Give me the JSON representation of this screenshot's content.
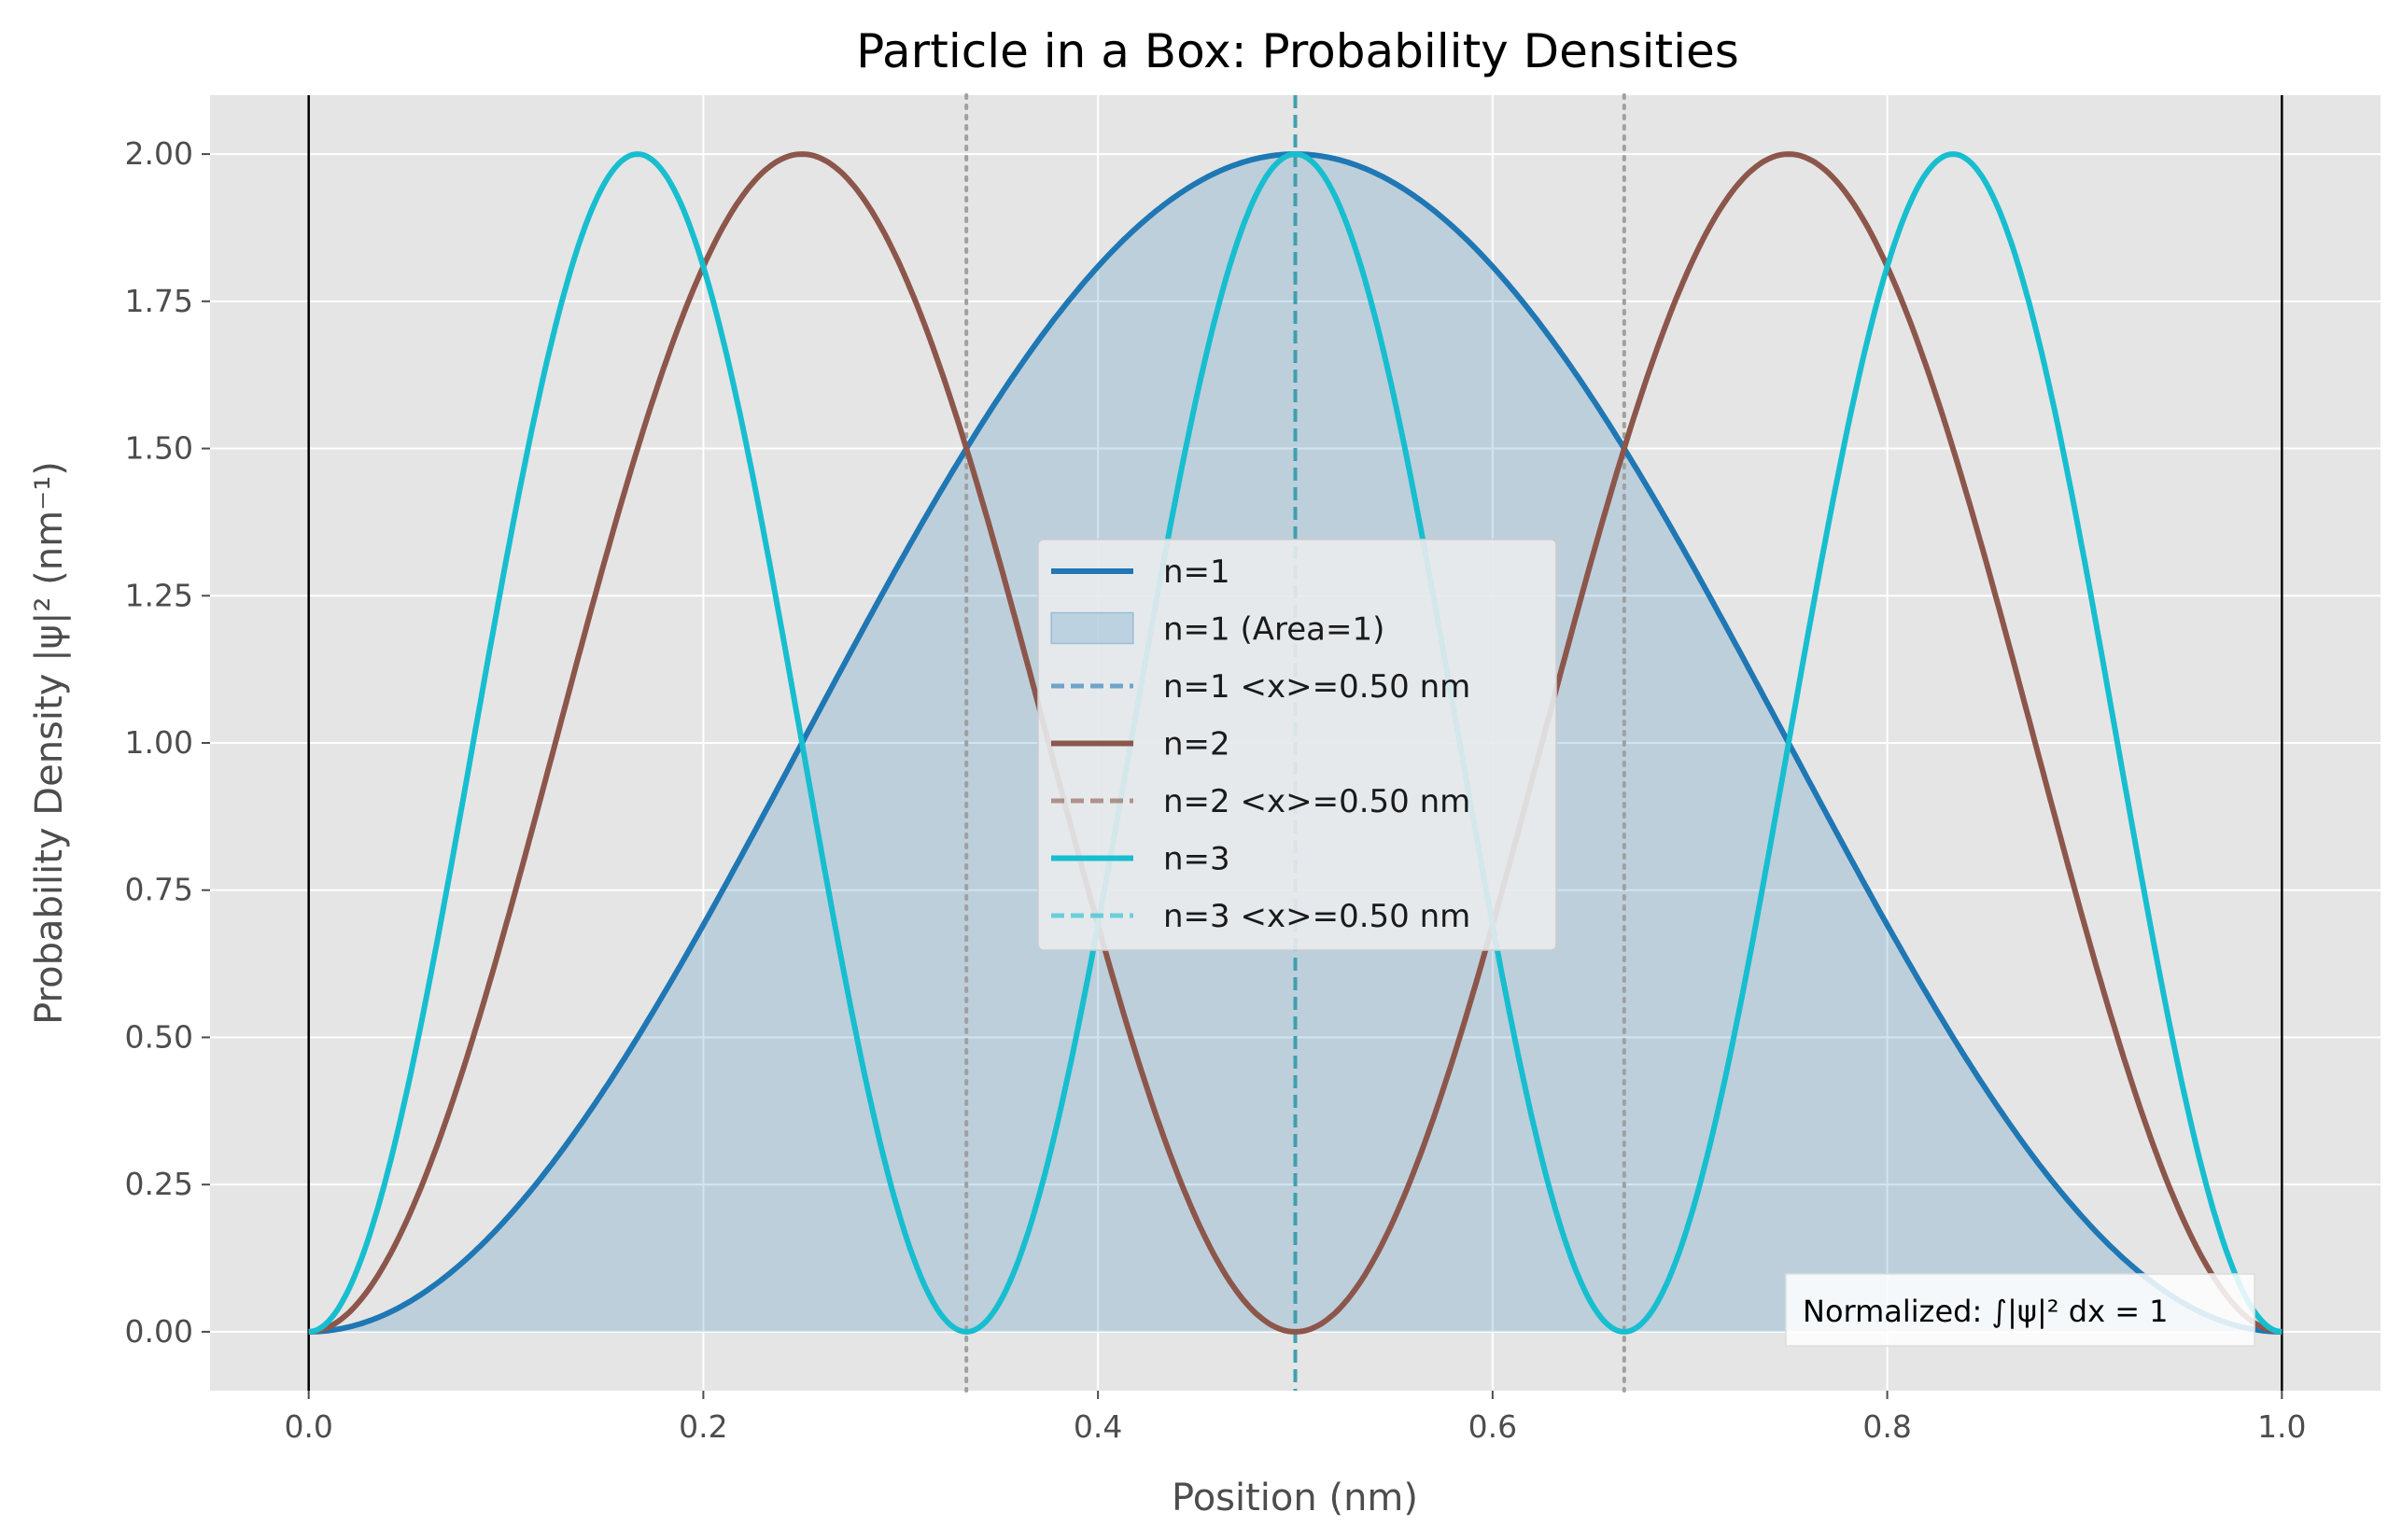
{
  "chart_data": {
    "type": "line",
    "title": "Particle in a Box: Probability Densities",
    "xlabel": "Position (nm)",
    "ylabel": "Probability Density |ψ|² (nm⁻¹)",
    "xlim": [
      -0.05,
      1.05
    ],
    "ylim": [
      -0.1,
      2.1
    ],
    "xticks": [
      0.0,
      0.2,
      0.4,
      0.6,
      0.8,
      1.0
    ],
    "xtick_labels": [
      "0.0",
      "0.2",
      "0.4",
      "0.6",
      "0.8",
      "1.0"
    ],
    "yticks": [
      0.0,
      0.25,
      0.5,
      0.75,
      1.0,
      1.25,
      1.5,
      1.75,
      2.0
    ],
    "ytick_labels": [
      "0.00",
      "0.25",
      "0.50",
      "0.75",
      "1.00",
      "1.25",
      "1.50",
      "1.75",
      "2.00"
    ],
    "grid": true,
    "box_length_nm": 1.0,
    "box_walls": [
      0.0,
      1.0
    ],
    "series": [
      {
        "name": "n=1",
        "n": 1,
        "color": "#1f77b4",
        "expectation_x": 0.5,
        "expectation_label": "n=1 <x>=0.50 nm",
        "fill": true,
        "fill_label": "n=1 (Area=1)"
      },
      {
        "name": "n=2",
        "n": 2,
        "color": "#8c564b",
        "expectation_x": 0.5,
        "expectation_label": "n=2 <x>=0.50 nm",
        "fill": false
      },
      {
        "name": "n=3",
        "n": 3,
        "color": "#17becf",
        "expectation_x": 0.5,
        "expectation_label": "n=3 <x>=0.50 nm",
        "fill": false
      }
    ],
    "node_lines_x": [
      0.3333,
      0.6667
    ],
    "legend_position": "center",
    "annotation": "Normalized: ∫|ψ|² dx = 1",
    "annotation_position": "bottom-right"
  }
}
